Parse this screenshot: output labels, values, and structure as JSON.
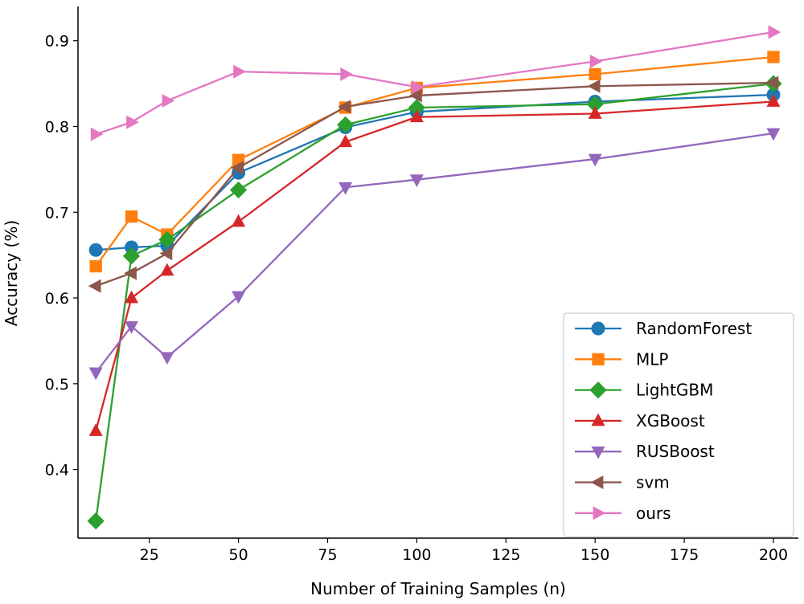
{
  "chart_data": {
    "type": "line",
    "title": "",
    "xlabel": "Number of Training Samples (n)",
    "ylabel": "Accuracy (%)",
    "xlim": [
      5,
      207
    ],
    "ylim": [
      0.32,
      0.94
    ],
    "xticks": [
      25,
      50,
      75,
      100,
      125,
      150,
      175,
      200
    ],
    "yticks": [
      0.4,
      0.5,
      0.6,
      0.7,
      0.8,
      0.9
    ],
    "x": [
      10,
      20,
      30,
      50,
      80,
      100,
      150,
      200
    ],
    "grid": false,
    "legend_position": "lower-right",
    "series": [
      {
        "name": "RandomForest",
        "color": "#1f77b4",
        "marker": "circle",
        "values": [
          0.656,
          0.659,
          0.661,
          0.746,
          0.799,
          0.817,
          0.829,
          0.837
        ]
      },
      {
        "name": "MLP",
        "color": "#ff7f0e",
        "marker": "square",
        "values": [
          0.637,
          0.695,
          0.674,
          0.761,
          0.822,
          0.845,
          0.861,
          0.881
        ]
      },
      {
        "name": "LightGBM",
        "color": "#2ca02c",
        "marker": "diamond",
        "values": [
          0.34,
          0.649,
          0.668,
          0.726,
          0.802,
          0.822,
          0.826,
          0.85
        ]
      },
      {
        "name": "XGBoost",
        "color": "#d62728",
        "marker": "triangle-up",
        "values": [
          0.445,
          0.6,
          0.632,
          0.689,
          0.782,
          0.811,
          0.815,
          0.829
        ]
      },
      {
        "name": "RUSBoost",
        "color": "#9467bd",
        "marker": "triangle-down",
        "values": [
          0.513,
          0.567,
          0.531,
          0.602,
          0.729,
          0.738,
          0.762,
          0.792
        ]
      },
      {
        "name": "svm",
        "color": "#8c564b",
        "marker": "triangle-left",
        "values": [
          0.614,
          0.629,
          0.652,
          0.752,
          0.823,
          0.836,
          0.847,
          0.851
        ]
      },
      {
        "name": "ours",
        "color": "#e377c2",
        "marker": "triangle-right",
        "values": [
          0.791,
          0.805,
          0.83,
          0.864,
          0.861,
          0.846,
          0.876,
          0.91
        ]
      }
    ]
  }
}
